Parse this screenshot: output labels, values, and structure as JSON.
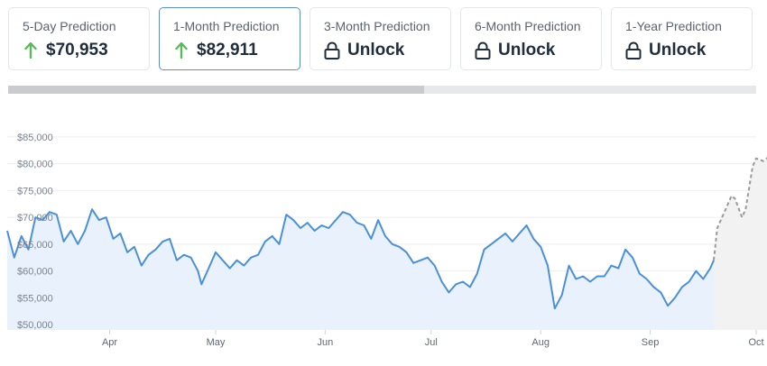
{
  "cards": [
    {
      "title": "5-Day Prediction",
      "value": "$70,953",
      "icon": "arrow-up-icon",
      "active": false
    },
    {
      "title": "1-Month Prediction",
      "value": "$82,911",
      "icon": "arrow-up-icon",
      "active": true
    },
    {
      "title": "3-Month Prediction",
      "value": "Unlock",
      "icon": "lock-icon",
      "active": false
    },
    {
      "title": "6-Month Prediction",
      "value": "Unlock",
      "icon": "lock-icon",
      "active": false
    },
    {
      "title": "1-Year Prediction",
      "value": "Unlock",
      "icon": "lock-icon",
      "active": false
    }
  ],
  "colors": {
    "up_arrow": "#5cb85c",
    "history_line": "#4a90d9",
    "history_fill": "#e9f1fc",
    "forecast_line": "#9a9a9a",
    "forecast_fill": "#f2f2f2",
    "card_active_border": "#5b8fc6"
  },
  "chart_data": {
    "type": "line",
    "title": "",
    "xlabel": "",
    "ylabel": "",
    "ylim": [
      49000,
      87000
    ],
    "grid": true,
    "y_ticks": [
      "$50,000",
      "$55,000",
      "$60,000",
      "$65,000",
      "$70,000",
      "$75,000",
      "$80,000",
      "$85,000"
    ],
    "y_tick_values": [
      50000,
      55000,
      60000,
      65000,
      70000,
      75000,
      80000,
      85000
    ],
    "x_ticks": [
      "Apr",
      "May",
      "Jun",
      "Jul",
      "Aug",
      "Sep",
      "Oct"
    ],
    "x_tick_dates": [
      "2024-04-01",
      "2024-05-01",
      "2024-06-01",
      "2024-07-01",
      "2024-08-01",
      "2024-09-01",
      "2024-10-01"
    ],
    "x_start": "2024-03-03",
    "x_end": "2024-10-01",
    "series": [
      {
        "style": "solid",
        "points": [
          [
            "2024-03-03",
            67500
          ],
          [
            "2024-03-05",
            62500
          ],
          [
            "2024-03-07",
            66500
          ],
          [
            "2024-03-09",
            64000
          ],
          [
            "2024-03-11",
            70000
          ],
          [
            "2024-03-13",
            69500
          ],
          [
            "2024-03-15",
            71000
          ],
          [
            "2024-03-17",
            70500
          ],
          [
            "2024-03-19",
            65500
          ],
          [
            "2024-03-21",
            67500
          ],
          [
            "2024-03-23",
            65000
          ],
          [
            "2024-03-25",
            67500
          ],
          [
            "2024-03-27",
            71500
          ],
          [
            "2024-03-29",
            69500
          ],
          [
            "2024-03-31",
            70000
          ],
          [
            "2024-04-02",
            66000
          ],
          [
            "2024-04-04",
            67000
          ],
          [
            "2024-04-06",
            63500
          ],
          [
            "2024-04-08",
            64500
          ],
          [
            "2024-04-10",
            61000
          ],
          [
            "2024-04-12",
            63000
          ],
          [
            "2024-04-14",
            64000
          ],
          [
            "2024-04-16",
            65500
          ],
          [
            "2024-04-18",
            66000
          ],
          [
            "2024-04-20",
            62000
          ],
          [
            "2024-04-22",
            63000
          ],
          [
            "2024-04-24",
            62500
          ],
          [
            "2024-04-26",
            60000
          ],
          [
            "2024-04-27",
            57500
          ],
          [
            "2024-04-29",
            60500
          ],
          [
            "2024-05-01",
            63500
          ],
          [
            "2024-05-03",
            62000
          ],
          [
            "2024-05-05",
            60500
          ],
          [
            "2024-05-07",
            62000
          ],
          [
            "2024-05-09",
            61000
          ],
          [
            "2024-05-11",
            62500
          ],
          [
            "2024-05-13",
            63000
          ],
          [
            "2024-05-15",
            65500
          ],
          [
            "2024-05-17",
            66500
          ],
          [
            "2024-05-19",
            65000
          ],
          [
            "2024-05-21",
            70500
          ],
          [
            "2024-05-23",
            69500
          ],
          [
            "2024-05-25",
            68000
          ],
          [
            "2024-05-27",
            69000
          ],
          [
            "2024-05-29",
            67500
          ],
          [
            "2024-05-31",
            68500
          ],
          [
            "2024-06-02",
            68000
          ],
          [
            "2024-06-04",
            69500
          ],
          [
            "2024-06-06",
            71000
          ],
          [
            "2024-06-08",
            70500
          ],
          [
            "2024-06-10",
            69000
          ],
          [
            "2024-06-12",
            68500
          ],
          [
            "2024-06-14",
            66000
          ],
          [
            "2024-06-16",
            69500
          ],
          [
            "2024-06-18",
            66500
          ],
          [
            "2024-06-20",
            65000
          ],
          [
            "2024-06-22",
            64500
          ],
          [
            "2024-06-24",
            63500
          ],
          [
            "2024-06-26",
            61500
          ],
          [
            "2024-06-28",
            62000
          ],
          [
            "2024-06-30",
            62500
          ],
          [
            "2024-07-02",
            61000
          ],
          [
            "2024-07-04",
            58000
          ],
          [
            "2024-07-06",
            56000
          ],
          [
            "2024-07-08",
            57500
          ],
          [
            "2024-07-10",
            58000
          ],
          [
            "2024-07-12",
            57000
          ],
          [
            "2024-07-14",
            59500
          ],
          [
            "2024-07-16",
            64000
          ],
          [
            "2024-07-18",
            65000
          ],
          [
            "2024-07-20",
            66000
          ],
          [
            "2024-07-22",
            67000
          ],
          [
            "2024-07-24",
            65500
          ],
          [
            "2024-07-26",
            67000
          ],
          [
            "2024-07-28",
            68500
          ],
          [
            "2024-07-30",
            66000
          ],
          [
            "2024-08-01",
            64500
          ],
          [
            "2024-08-03",
            61000
          ],
          [
            "2024-08-05",
            53000
          ],
          [
            "2024-08-07",
            55500
          ],
          [
            "2024-08-09",
            61000
          ],
          [
            "2024-08-11",
            58500
          ],
          [
            "2024-08-13",
            59000
          ],
          [
            "2024-08-15",
            58000
          ],
          [
            "2024-08-17",
            59000
          ],
          [
            "2024-08-19",
            59000
          ],
          [
            "2024-08-21",
            61000
          ],
          [
            "2024-08-23",
            60500
          ],
          [
            "2024-08-25",
            64000
          ],
          [
            "2024-08-27",
            62500
          ],
          [
            "2024-08-29",
            59500
          ],
          [
            "2024-08-31",
            58500
          ],
          [
            "2024-09-02",
            57000
          ],
          [
            "2024-09-04",
            56000
          ],
          [
            "2024-09-06",
            53500
          ],
          [
            "2024-09-08",
            55000
          ],
          [
            "2024-09-10",
            57000
          ],
          [
            "2024-09-12",
            58000
          ],
          [
            "2024-09-14",
            60000
          ],
          [
            "2024-09-16",
            58500
          ],
          [
            "2024-09-18",
            60500
          ],
          [
            "2024-09-19",
            62000
          ]
        ]
      },
      {
        "style": "dashed",
        "points": [
          [
            "2024-09-19",
            62000
          ],
          [
            "2024-09-20",
            68000
          ],
          [
            "2024-09-22",
            71000
          ],
          [
            "2024-09-24",
            74000
          ],
          [
            "2024-09-25",
            73500
          ],
          [
            "2024-09-27",
            70000
          ],
          [
            "2024-09-28",
            71500
          ],
          [
            "2024-09-30",
            79500
          ],
          [
            "2024-10-01",
            81000
          ],
          [
            "2024-10-03",
            80500
          ],
          [
            "2024-10-05",
            81500
          ],
          [
            "2024-10-07",
            82000
          ],
          [
            "2024-10-08",
            83500
          ],
          [
            "2024-10-09",
            83000
          ]
        ]
      }
    ]
  }
}
